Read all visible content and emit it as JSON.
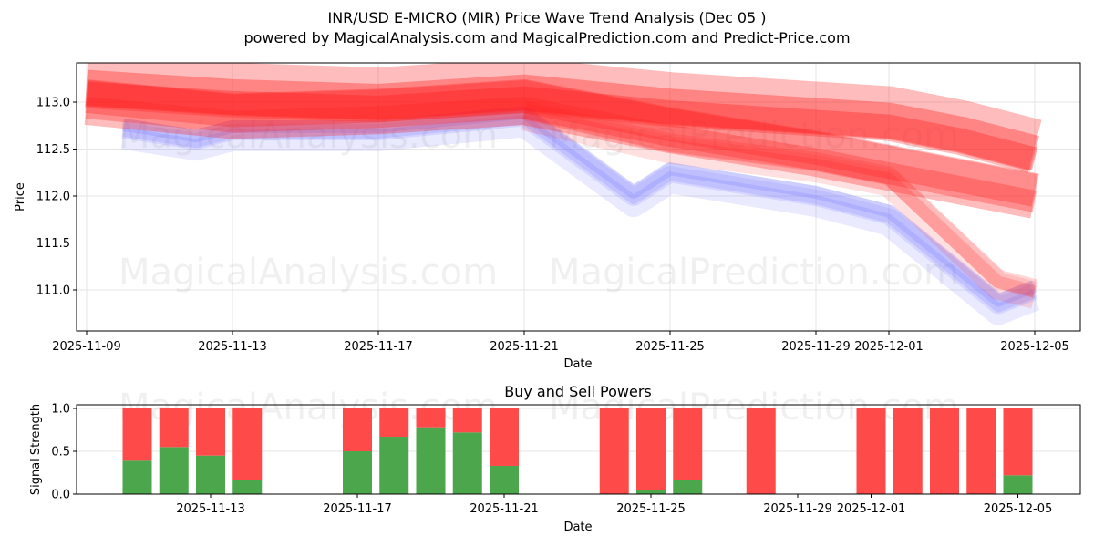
{
  "header": {
    "title": "INR/USD E-MICRO (MIR) Price Wave Trend Analysis (Dec 05 )",
    "subtitle": "powered by MagicalAnalysis.com and MagicalPrediction.com and Predict-Price.com"
  },
  "watermarks": [
    "MagicalAnalysis.com",
    "MagicalPrediction.com"
  ],
  "colors": {
    "buy": "#4ca64c",
    "sell": "#ff4a4a",
    "wave_red": "#ff2020",
    "wave_blue": "#6a6aff"
  },
  "chart_data": [
    {
      "type": "area",
      "title": "INR/USD E-MICRO (MIR) Price Wave Trend Analysis (Dec 05 )",
      "xlabel": "Date",
      "ylabel": "Price",
      "ylim": [
        110.58,
        113.42
      ],
      "yticks": [
        "111.0",
        "111.5",
        "112.0",
        "112.5",
        "113.0"
      ],
      "xticks": [
        "2025-11-09",
        "2025-11-13",
        "2025-11-17",
        "2025-11-21",
        "2025-11-25",
        "2025-11-29",
        "2025-12-01",
        "2025-12-05"
      ],
      "grid": true,
      "series": [
        {
          "name": "red wave (upper band center)",
          "x": [
            "2025-11-09",
            "2025-11-13",
            "2025-11-17",
            "2025-11-21",
            "2025-11-25",
            "2025-11-29",
            "2025-12-01",
            "2025-12-03",
            "2025-12-05"
          ],
          "values": [
            113.15,
            113.05,
            113.0,
            113.1,
            112.95,
            112.85,
            112.8,
            112.65,
            112.45
          ]
        },
        {
          "name": "red wave (lower band center)",
          "x": [
            "2025-11-09",
            "2025-11-13",
            "2025-11-17",
            "2025-11-21",
            "2025-11-25",
            "2025-11-29",
            "2025-12-01",
            "2025-12-03",
            "2025-12-05"
          ],
          "values": [
            113.0,
            112.85,
            112.9,
            113.0,
            112.7,
            112.45,
            112.3,
            112.15,
            112.0
          ]
        },
        {
          "name": "red wave (falling branch)",
          "x": [
            "2025-11-21",
            "2025-11-25",
            "2025-11-29",
            "2025-12-01",
            "2025-12-04",
            "2025-12-05"
          ],
          "values": [
            112.9,
            112.55,
            112.35,
            112.2,
            111.1,
            111.0
          ]
        },
        {
          "name": "blue wave",
          "x": [
            "2025-11-10",
            "2025-11-12",
            "2025-11-13",
            "2025-11-17",
            "2025-11-21",
            "2025-11-24",
            "2025-11-25",
            "2025-11-29",
            "2025-12-01",
            "2025-12-04",
            "2025-12-05"
          ],
          "values": [
            112.72,
            112.6,
            112.7,
            112.7,
            112.85,
            112.0,
            112.25,
            112.0,
            111.8,
            110.85,
            111.0
          ]
        }
      ]
    },
    {
      "type": "bar",
      "title": "Buy and Sell Powers",
      "xlabel": "Date",
      "ylabel": "Signal Strength",
      "ylim": [
        0,
        1.05
      ],
      "yticks": [
        "0.0",
        "0.5",
        "1.0"
      ],
      "xticks": [
        "2025-11-13",
        "2025-11-17",
        "2025-11-21",
        "2025-11-25",
        "2025-11-29",
        "2025-12-01",
        "2025-12-05"
      ],
      "categories": [
        "2025-11-11",
        "2025-11-12",
        "2025-11-13",
        "2025-11-14",
        "2025-11-17",
        "2025-11-18",
        "2025-11-19",
        "2025-11-20",
        "2025-11-21",
        "2025-11-24",
        "2025-11-25",
        "2025-11-26",
        "2025-11-28",
        "2025-12-01",
        "2025-12-02",
        "2025-12-03",
        "2025-12-04",
        "2025-12-05"
      ],
      "series": [
        {
          "name": "Buy",
          "color": "#4ca64c",
          "values": [
            0.39,
            0.55,
            0.45,
            0.17,
            0.5,
            0.67,
            0.78,
            0.72,
            0.33,
            0.0,
            0.05,
            0.17,
            0.0,
            0.0,
            0.0,
            0.0,
            0.0,
            0.22
          ]
        },
        {
          "name": "Sell",
          "color": "#ff4a4a",
          "values": [
            0.61,
            0.45,
            0.55,
            0.83,
            0.5,
            0.33,
            0.22,
            0.28,
            0.67,
            1.0,
            0.95,
            0.83,
            1.0,
            1.0,
            1.0,
            1.0,
            1.0,
            0.78
          ]
        }
      ]
    }
  ]
}
